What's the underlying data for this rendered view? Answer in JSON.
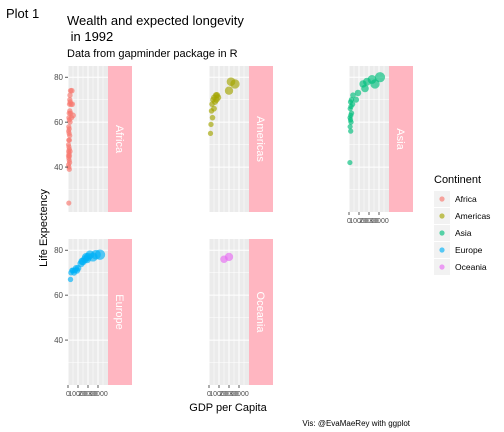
{
  "page_label": "Plot 1",
  "caption": "Vis: @EvaMaeRey with ggplot",
  "colors": {
    "panel_bg": "#EBEBEB",
    "grid": "#ffffff",
    "strip_bg": "#FFB6C1",
    "strip_text": "#ffffff",
    "Africa": "#F8766D",
    "Americas": "#A3A500",
    "Asia": "#00BF7D",
    "Europe": "#00B0F6",
    "Oceania": "#E76BF3"
  },
  "chart_data": {
    "type": "scatter",
    "title": "Wealth and expected longevity\n in 1992",
    "subtitle": "Data from gapminder package in R",
    "xlabel": "GDP per Capita",
    "ylabel": "Life Expectency",
    "xlim": [
      0,
      40000
    ],
    "ylim": [
      20,
      85
    ],
    "y_ticks": [
      40,
      60,
      80
    ],
    "x_tick_labels": [
      "0",
      "10000",
      "20000",
      "30000"
    ],
    "grid": true,
    "facet_wrap": "continent",
    "strip_position": "right",
    "legend": {
      "title": "Continent",
      "position": "right",
      "entries": [
        "Africa",
        "Americas",
        "Asia",
        "Europe",
        "Oceania"
      ]
    },
    "series": [
      {
        "name": "Africa",
        "points": [
          [
            2000,
            72
          ],
          [
            2600,
            74
          ],
          [
            3800,
            74
          ],
          [
            1800,
            70
          ],
          [
            2200,
            69
          ],
          [
            3000,
            68
          ],
          [
            1500,
            68
          ],
          [
            4200,
            68
          ],
          [
            1200,
            64
          ],
          [
            1800,
            65
          ],
          [
            2600,
            64
          ],
          [
            900,
            62
          ],
          [
            1300,
            61
          ],
          [
            2000,
            60
          ],
          [
            3400,
            62
          ],
          [
            5000,
            63
          ],
          [
            800,
            58
          ],
          [
            1200,
            57
          ],
          [
            600,
            56
          ],
          [
            1100,
            55
          ],
          [
            1700,
            54
          ],
          [
            700,
            52
          ],
          [
            1400,
            52
          ],
          [
            500,
            50
          ],
          [
            900,
            49
          ],
          [
            1300,
            48
          ],
          [
            2000,
            47
          ],
          [
            600,
            47
          ],
          [
            1000,
            46
          ],
          [
            1500,
            45
          ],
          [
            400,
            45
          ],
          [
            800,
            44
          ],
          [
            1200,
            43
          ],
          [
            1600,
            42
          ],
          [
            500,
            41
          ],
          [
            900,
            40
          ],
          [
            1300,
            39
          ],
          [
            800,
            24
          ]
        ]
      },
      {
        "name": "Americas",
        "points": [
          [
            26000,
            77
          ],
          [
            22000,
            78
          ],
          [
            20000,
            74
          ],
          [
            7000,
            72
          ],
          [
            5000,
            71
          ],
          [
            7500,
            70
          ],
          [
            8000,
            72
          ],
          [
            9000,
            71
          ],
          [
            4000,
            70
          ],
          [
            6000,
            69
          ],
          [
            3000,
            68
          ],
          [
            5000,
            66
          ],
          [
            2500,
            65
          ],
          [
            3500,
            62
          ],
          [
            2000,
            59
          ],
          [
            1500,
            55
          ]
        ]
      },
      {
        "name": "Asia",
        "points": [
          [
            23000,
            79
          ],
          [
            31000,
            80
          ],
          [
            26000,
            77
          ],
          [
            18000,
            78
          ],
          [
            14000,
            77
          ],
          [
            16000,
            75
          ],
          [
            9000,
            73
          ],
          [
            4000,
            72
          ],
          [
            7000,
            70
          ],
          [
            2500,
            70
          ],
          [
            3500,
            68
          ],
          [
            1500,
            69
          ],
          [
            2000,
            67
          ],
          [
            1200,
            66
          ],
          [
            2500,
            64
          ],
          [
            1800,
            63
          ],
          [
            1000,
            62
          ],
          [
            1500,
            61
          ],
          [
            2000,
            60
          ],
          [
            1100,
            58
          ],
          [
            1700,
            56
          ],
          [
            900,
            42
          ]
        ]
      },
      {
        "name": "Europe",
        "points": [
          [
            32000,
            78
          ],
          [
            28000,
            78
          ],
          [
            25000,
            77
          ],
          [
            22000,
            78
          ],
          [
            20000,
            77
          ],
          [
            19000,
            76
          ],
          [
            18000,
            77
          ],
          [
            17000,
            76
          ],
          [
            15000,
            75
          ],
          [
            14000,
            75
          ],
          [
            13000,
            74
          ],
          [
            10000,
            72
          ],
          [
            9000,
            71
          ],
          [
            8000,
            72
          ],
          [
            7000,
            71
          ],
          [
            6000,
            70
          ],
          [
            5000,
            71
          ],
          [
            4000,
            71
          ],
          [
            3000,
            70
          ],
          [
            2500,
            67
          ]
        ]
      },
      {
        "name": "Oceania",
        "points": [
          [
            15000,
            76
          ],
          [
            20000,
            77
          ]
        ]
      }
    ]
  }
}
